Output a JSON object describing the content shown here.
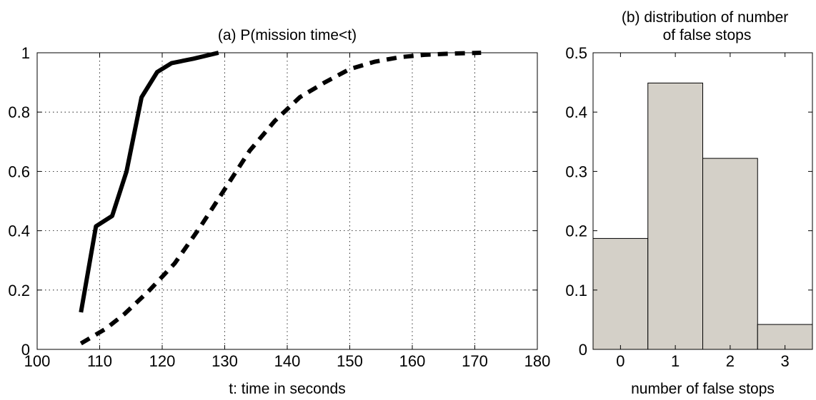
{
  "chart_data": [
    {
      "type": "line",
      "title": "(a) P(mission time<t)",
      "xlabel": "t: time in seconds",
      "ylabel": "",
      "xlim": [
        100,
        180
      ],
      "ylim": [
        0,
        1
      ],
      "xticks": [
        100,
        110,
        120,
        130,
        140,
        150,
        160,
        170,
        180
      ],
      "yticks": [
        0,
        0.2,
        0.4,
        0.6,
        0.8,
        1
      ],
      "ytick_labels": [
        "0",
        "0.2",
        "0.4",
        "0.6",
        "0.8",
        "1"
      ],
      "grid": true,
      "series": [
        {
          "style": "solid",
          "color": "#000000",
          "x": [
            107,
            109.4,
            112,
            114.3,
            116.7,
            119.2,
            121.5,
            125,
            129
          ],
          "y": [
            0.125,
            0.415,
            0.45,
            0.6,
            0.85,
            0.935,
            0.965,
            0.98,
            1.0
          ]
        },
        {
          "style": "dashed",
          "color": "#000000",
          "x": [
            107,
            111,
            114,
            118,
            122,
            126,
            130,
            134,
            138,
            142,
            146,
            150,
            154,
            158,
            162,
            166,
            171
          ],
          "y": [
            0.02,
            0.07,
            0.12,
            0.2,
            0.29,
            0.41,
            0.54,
            0.67,
            0.77,
            0.85,
            0.9,
            0.945,
            0.97,
            0.985,
            0.993,
            0.997,
            1.0
          ]
        }
      ]
    },
    {
      "type": "bar",
      "title": "(b) distribution of number of false stops",
      "title_lines": [
        "(b) distribution of number",
        "of false stops"
      ],
      "xlabel": "number of false stops",
      "ylabel": "",
      "categories": [
        "0",
        "1",
        "2",
        "3"
      ],
      "values": [
        0.187,
        0.449,
        0.322,
        0.042
      ],
      "xlim": [
        -0.5,
        3.5
      ],
      "ylim": [
        0,
        0.5
      ],
      "yticks": [
        0,
        0.1,
        0.2,
        0.3,
        0.4,
        0.5
      ],
      "ytick_labels": [
        "0",
        "0.1",
        "0.2",
        "0.3",
        "0.4",
        "0.5"
      ],
      "bar_color": "#d4d0c8",
      "grid": false
    }
  ]
}
